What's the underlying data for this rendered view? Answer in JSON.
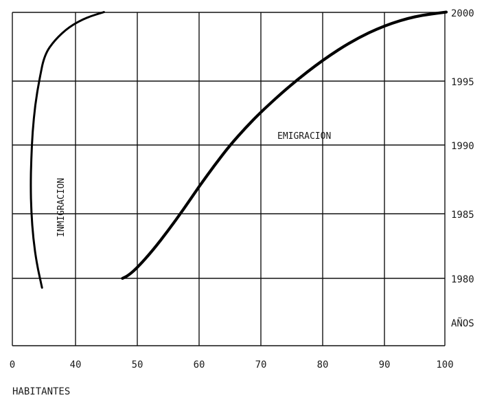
{
  "chart_data": {
    "type": "line",
    "title": "",
    "xlabel": "HABITANTES",
    "ylabel": "AÑOS",
    "x_ticks": [
      "0",
      "40",
      "50",
      "60",
      "70",
      "80",
      "90",
      "100"
    ],
    "y_ticks": [
      "1980",
      "1985",
      "1990",
      "1995",
      "2000"
    ],
    "xlim": [
      30,
      100
    ],
    "ylim": [
      1975,
      2000
    ],
    "grid": true,
    "series": [
      {
        "name": "INMIGRACION",
        "color": "#000000",
        "points": [
          [
            34.7,
            1979.3
          ],
          [
            33.9,
            1981
          ],
          [
            33.3,
            1983
          ],
          [
            33.0,
            1985
          ],
          [
            32.9,
            1987
          ],
          [
            33.0,
            1989
          ],
          [
            33.2,
            1991
          ],
          [
            33.6,
            1993
          ],
          [
            34.3,
            1995
          ],
          [
            35.1,
            1996.8
          ],
          [
            36.7,
            1997.9
          ],
          [
            39.0,
            1998.9
          ],
          [
            41.8,
            1999.6
          ],
          [
            44.6,
            2000
          ]
        ]
      },
      {
        "name": "EMIGRACION",
        "color": "#000000",
        "points": [
          [
            47.6,
            1980
          ],
          [
            48.5,
            1980.2
          ],
          [
            50.0,
            1980.8
          ],
          [
            52.5,
            1982.1
          ],
          [
            55.0,
            1983.6
          ],
          [
            57.5,
            1985.2
          ],
          [
            60.0,
            1986.9
          ],
          [
            62.5,
            1988.5
          ],
          [
            65.0,
            1990.0
          ],
          [
            67.5,
            1991.3
          ],
          [
            70.0,
            1992.5
          ],
          [
            75.0,
            1994.6
          ],
          [
            80.0,
            1996.4
          ],
          [
            85.0,
            1997.9
          ],
          [
            90.0,
            1999.0
          ],
          [
            95.0,
            1999.7
          ],
          [
            100.0,
            2000
          ]
        ]
      }
    ]
  }
}
